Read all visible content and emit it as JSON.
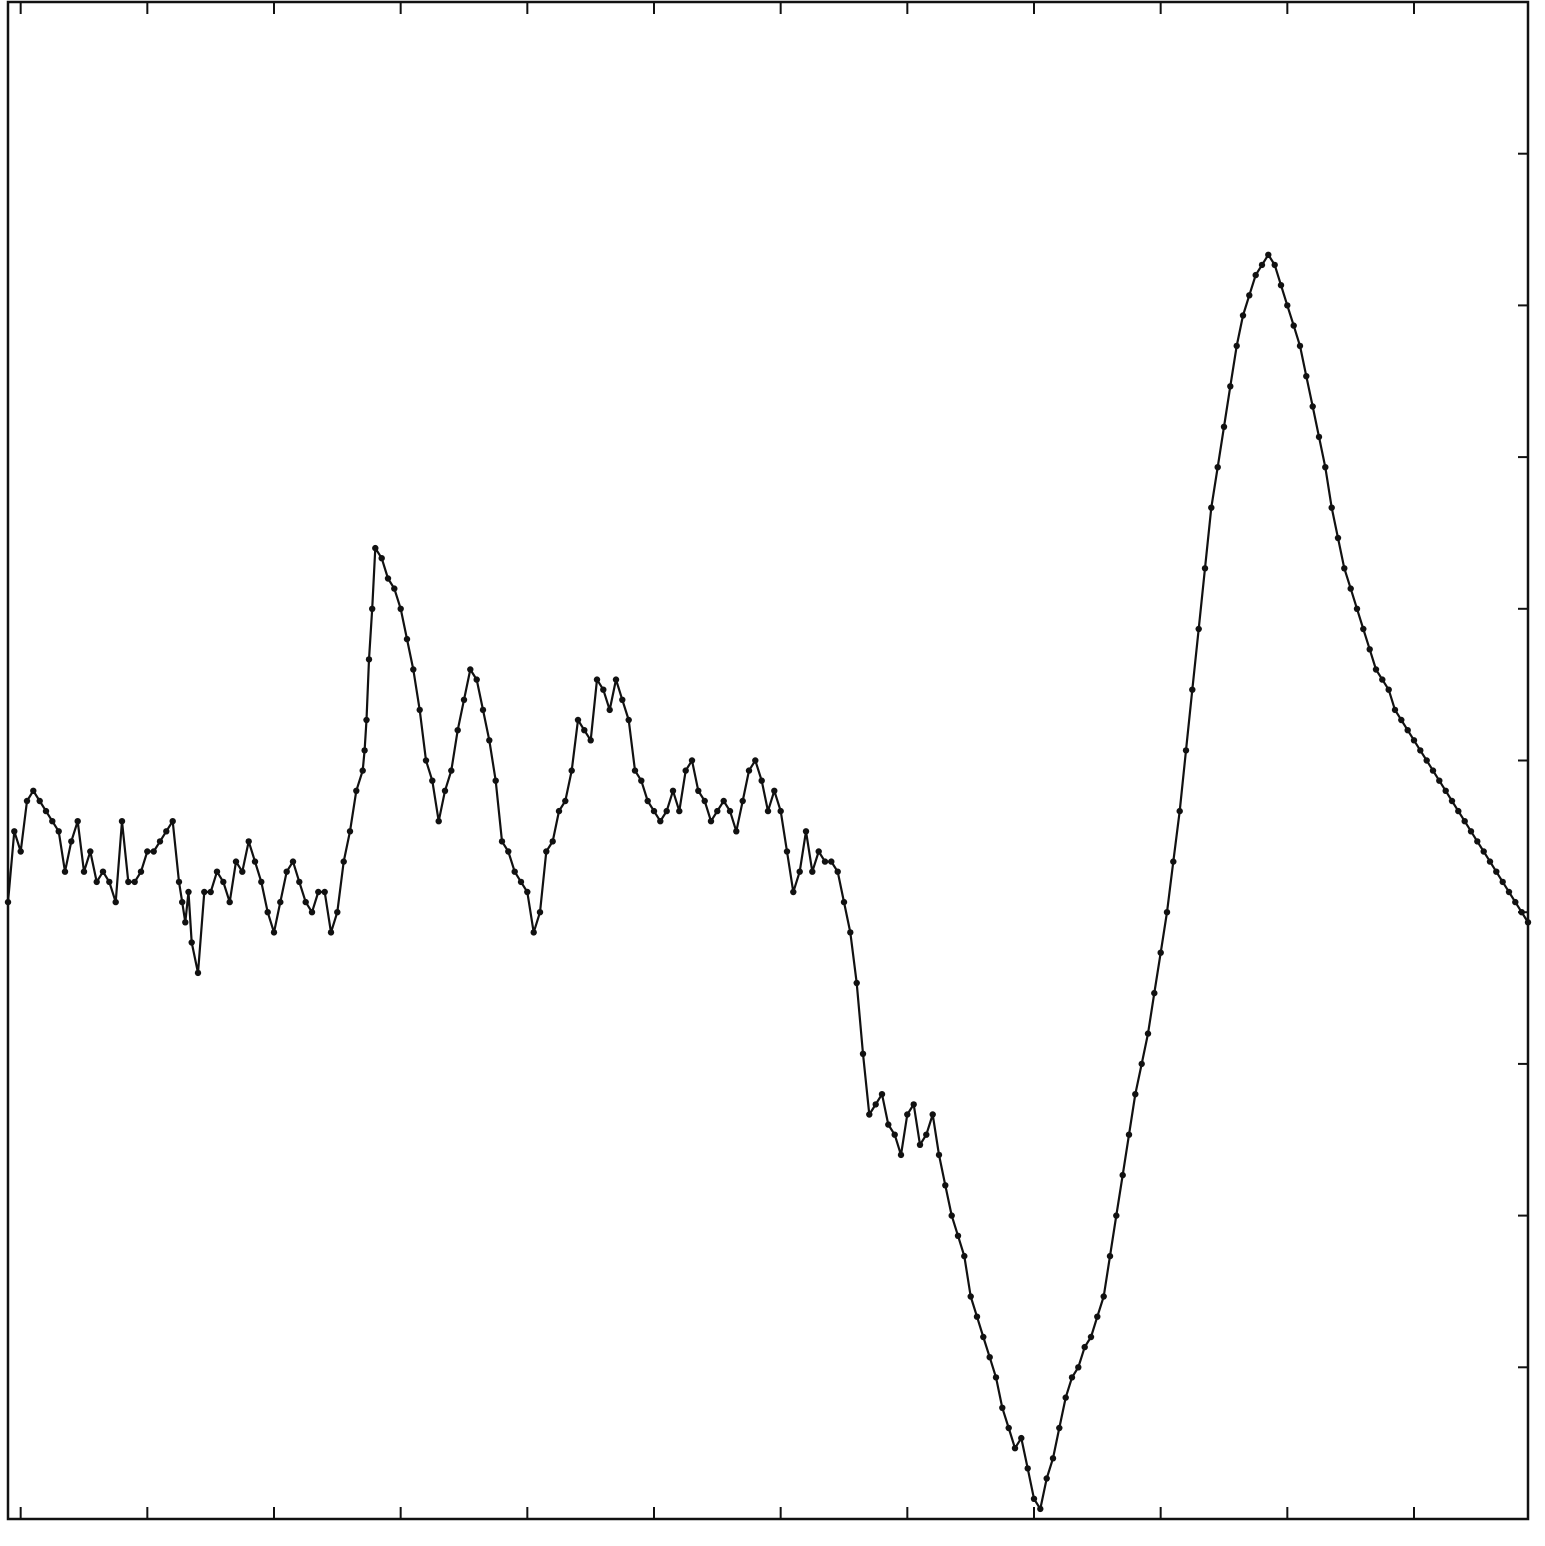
{
  "chart_data": {
    "type": "line",
    "title": "",
    "xlabel": "",
    "ylabel": "",
    "grid": false,
    "legend": "none",
    "markers": true,
    "color": "#111111",
    "xlim": [
      0,
      240
    ],
    "ylim": [
      0,
      150
    ],
    "x_ticks": [
      2,
      22,
      42,
      62,
      82,
      102,
      122,
      142,
      162,
      182,
      202,
      222
    ],
    "y_ticks": [
      15,
      30,
      45,
      60,
      75,
      90,
      105,
      120,
      135
    ],
    "series": [
      {
        "x": [
          0,
          1,
          2,
          3,
          4,
          5,
          6,
          7,
          8,
          9,
          10,
          11,
          12,
          13,
          14,
          15,
          16,
          17,
          18,
          19,
          20,
          21,
          22,
          23,
          24,
          25,
          26,
          27,
          27.5,
          28,
          28.5,
          29,
          30,
          31,
          32,
          33,
          34,
          35,
          36,
          37,
          38,
          39,
          40,
          41,
          42,
          43,
          44,
          45,
          46,
          47,
          48,
          49,
          50,
          51,
          52,
          53,
          54,
          55,
          56,
          56.3,
          56.6,
          57,
          57.5,
          58,
          59,
          60,
          61,
          62,
          63,
          64,
          65,
          66,
          67,
          68,
          69,
          70,
          71,
          72,
          73,
          74,
          75,
          76,
          77,
          78,
          79,
          80,
          81,
          82,
          83,
          84,
          85,
          86,
          87,
          88,
          89,
          90,
          91,
          92,
          93,
          94,
          95,
          96,
          97,
          98,
          99,
          100,
          101,
          102,
          103,
          104,
          105,
          106,
          107,
          108,
          109,
          110,
          111,
          112,
          113,
          114,
          115,
          116,
          117,
          118,
          119,
          120,
          121,
          122,
          123,
          124,
          125,
          126,
          127,
          128,
          129,
          130,
          131,
          132,
          133,
          134,
          135,
          136,
          137,
          138,
          139,
          140,
          141,
          142,
          143,
          144,
          145,
          146,
          147,
          148,
          149,
          150,
          151,
          152,
          153,
          154,
          155,
          156,
          157,
          158,
          159,
          160,
          161,
          162,
          163,
          164,
          165,
          166,
          167,
          168,
          169,
          170,
          171,
          172,
          173,
          174,
          175,
          176,
          177,
          178,
          179,
          180,
          181,
          182,
          183,
          184,
          185,
          186,
          187,
          188,
          189,
          190,
          191,
          192,
          193,
          194,
          195,
          196,
          197,
          198,
          199,
          200,
          201,
          202,
          203,
          204,
          205,
          206,
          207,
          208,
          209,
          210,
          211,
          212,
          213,
          214,
          215,
          216,
          217,
          218,
          219,
          220,
          221,
          222,
          223,
          224,
          225,
          226,
          227,
          228,
          229,
          230,
          231,
          232,
          233,
          234,
          235,
          236,
          237,
          238,
          239,
          240
        ],
        "y": [
          61,
          68,
          66,
          71,
          72,
          71,
          70,
          69,
          68,
          64,
          67,
          69,
          64,
          66,
          63,
          64,
          63,
          61,
          69,
          63,
          63,
          64,
          66,
          66,
          67,
          68,
          69,
          63,
          61,
          59,
          62,
          57,
          54,
          62,
          62,
          64,
          63,
          61,
          65,
          64,
          67,
          65,
          63,
          60,
          58,
          61,
          64,
          65,
          63,
          61,
          60,
          62,
          62,
          58,
          60,
          65,
          68,
          72,
          74,
          76,
          79,
          85,
          90,
          96,
          95,
          93,
          92,
          90,
          87,
          84,
          80,
          75,
          73,
          69,
          72,
          74,
          78,
          81,
          84,
          83,
          80,
          77,
          73,
          67,
          66,
          64,
          63,
          62,
          58,
          60,
          66,
          67,
          70,
          71,
          74,
          79,
          78,
          77,
          83,
          82,
          80,
          83,
          81,
          79,
          74,
          73,
          71,
          70,
          69,
          70,
          72,
          70,
          74,
          75,
          72,
          71,
          69,
          70,
          71,
          70,
          68,
          71,
          74,
          75,
          73,
          70,
          72,
          70,
          66,
          62,
          64,
          68,
          64,
          66,
          65,
          65,
          64,
          61,
          58,
          53,
          46,
          40,
          41,
          42,
          39,
          38,
          36,
          40,
          41,
          37,
          38,
          40,
          36,
          33,
          30,
          28,
          26,
          22,
          20,
          18,
          16,
          14,
          11,
          9,
          7,
          8,
          5,
          2,
          1,
          4,
          6,
          9,
          12,
          14,
          15,
          17,
          18,
          20,
          22,
          26,
          30,
          34,
          38,
          42,
          45,
          48,
          52,
          56,
          60,
          65,
          70,
          76,
          82,
          88,
          94,
          100,
          104,
          108,
          112,
          116,
          119,
          121,
          123,
          124,
          125,
          124,
          122,
          120,
          118,
          116,
          113,
          110,
          107,
          104,
          100,
          97,
          94,
          92,
          90,
          88,
          86,
          84,
          83,
          82,
          80,
          79,
          78,
          77,
          76,
          75,
          74,
          73,
          72,
          71,
          70,
          69,
          68,
          67,
          66,
          65,
          64,
          63,
          62,
          61,
          60,
          59
        ]
      }
    ]
  }
}
